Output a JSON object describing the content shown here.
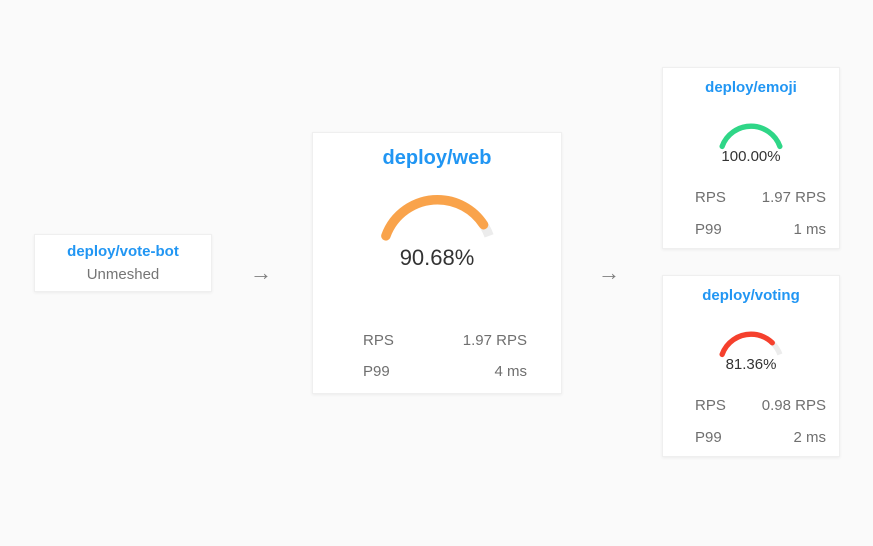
{
  "colors": {
    "link_blue": "#2196f3",
    "gauge_track": "#ececec",
    "gauge_orange": "#f9a34b",
    "gauge_green": "#2fd687",
    "gauge_red": "#f5402d",
    "arrow_gray": "#7e7e7e",
    "background": "#fafafa"
  },
  "arrow_glyph": "→",
  "nodes": {
    "vote_bot": {
      "title": "deploy/vote-bot",
      "status": "Unmeshed"
    },
    "web": {
      "title": "deploy/web",
      "success_rate_label": "90.68%",
      "gauge": {
        "percent": 90.68,
        "color": "#f9a34b"
      },
      "metrics": [
        {
          "label": "RPS",
          "value": "1.97 RPS"
        },
        {
          "label": "P99",
          "value": "4 ms"
        }
      ]
    },
    "emoji": {
      "title": "deploy/emoji",
      "success_rate_label": "100.00%",
      "gauge": {
        "percent": 100,
        "color": "#2fd687"
      },
      "metrics": [
        {
          "label": "RPS",
          "value": "1.97 RPS"
        },
        {
          "label": "P99",
          "value": "1 ms"
        }
      ]
    },
    "voting": {
      "title": "deploy/voting",
      "success_rate_label": "81.36%",
      "gauge": {
        "percent": 81.36,
        "color": "#f5402d"
      },
      "metrics": [
        {
          "label": "RPS",
          "value": "0.98 RPS"
        },
        {
          "label": "P99",
          "value": "2 ms"
        }
      ]
    }
  }
}
